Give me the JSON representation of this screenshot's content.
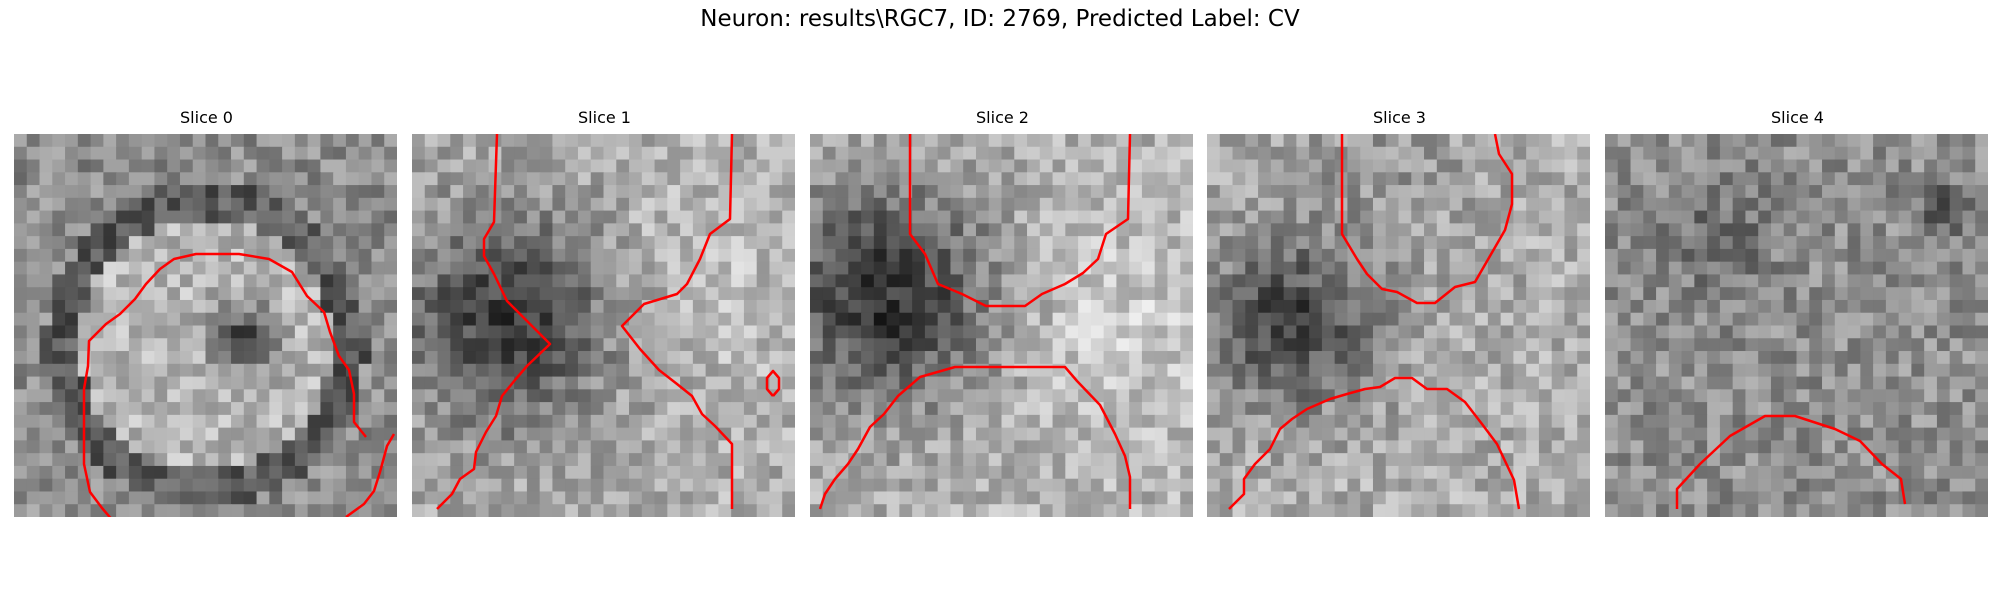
{
  "figure": {
    "title": "Neuron: results\\RGC7, ID: 2769, Predicted Label: CV",
    "contour_color": "#ff0000",
    "colormap": "gray"
  },
  "slices": [
    {
      "title": "Slice 0"
    },
    {
      "title": "Slice 1"
    },
    {
      "title": "Slice 2"
    },
    {
      "title": "Slice 3"
    },
    {
      "title": "Slice 4"
    }
  ]
}
